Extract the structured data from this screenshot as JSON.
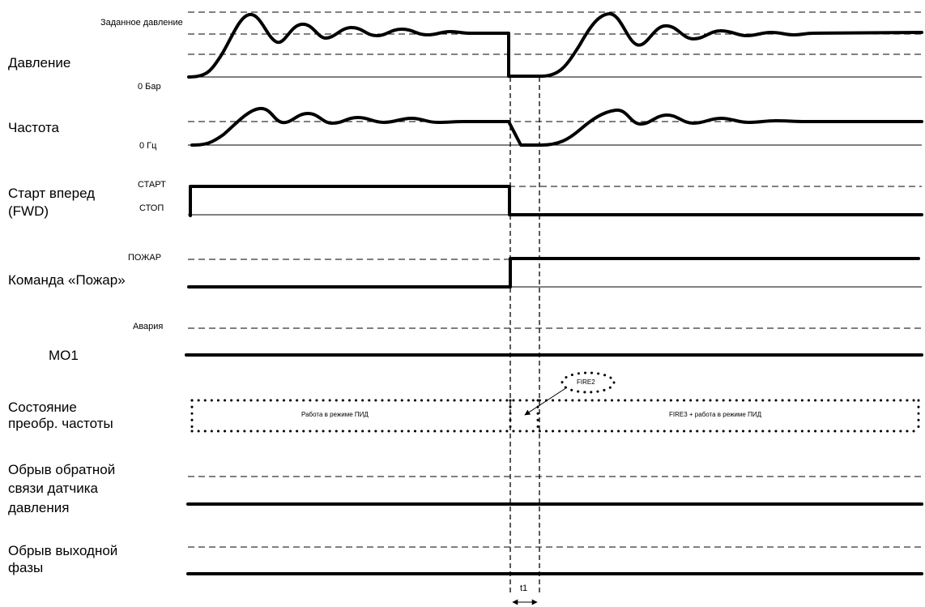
{
  "rows": {
    "pressure": {
      "label": "Давление",
      "setpoint": "Заданное давление",
      "zero": "0 Бар"
    },
    "frequency": {
      "label": "Частота",
      "zero": "0 Гц"
    },
    "fwd": {
      "label_line1": "Старт вперед",
      "label_line2": "(FWD)",
      "start": "СТАРТ",
      "stop": "СТОП"
    },
    "fire_cmd": {
      "label": "Команда «Пожар»",
      "level": "ПОЖАР"
    },
    "mo1": {
      "label": "MO1",
      "level": "Авария"
    },
    "state": {
      "label_line1": "Состояние",
      "label_line2": "преобр. частоты",
      "before": "Работа в режиме ПИД",
      "after": "FIRE3 + работа в режиме ПИД",
      "callout": "FIRE2"
    },
    "feedback_loss": {
      "label_line1": "Обрыв обратной",
      "label_line2": "связи датчика",
      "label_line3": "давления"
    },
    "phase_loss": {
      "label_line1": "Обрыв выходной",
      "label_line2": "фазы"
    }
  },
  "interval": {
    "label": "t1"
  }
}
